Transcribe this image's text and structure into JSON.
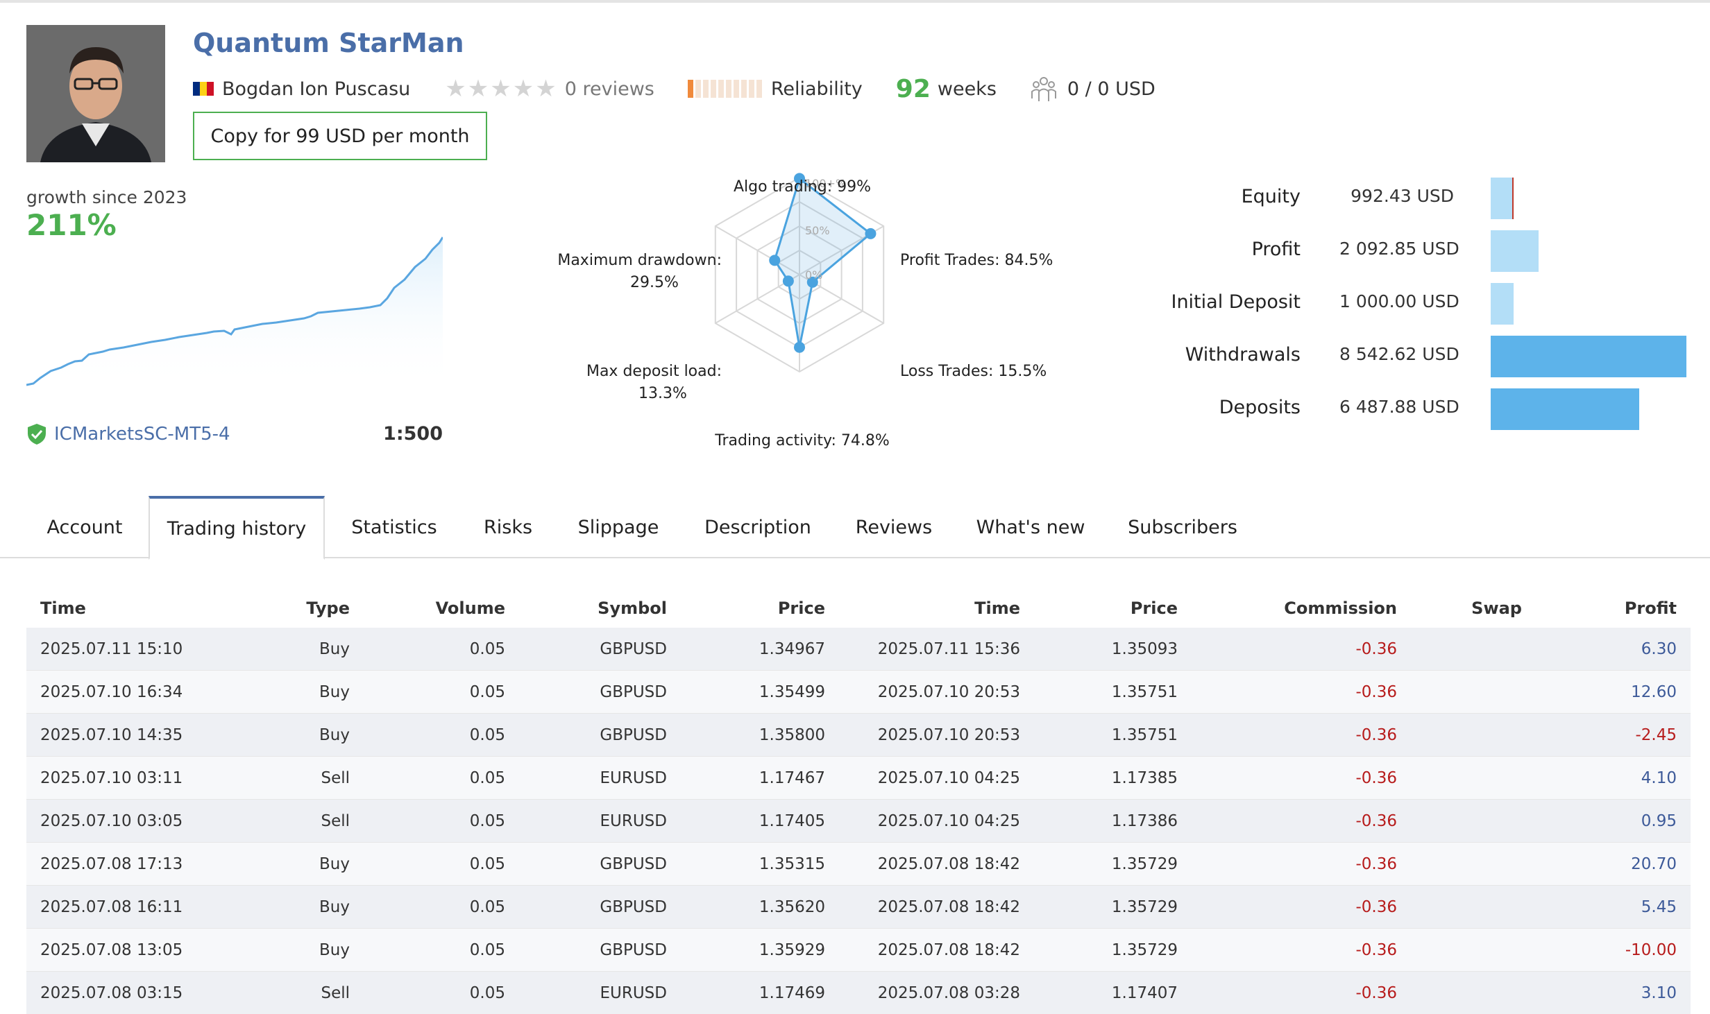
{
  "header": {
    "title": "Quantum StarMan",
    "author": "Bogdan Ion Puscasu",
    "reviews": "0 reviews",
    "reliability_label": "Reliability",
    "weeks_number": "92",
    "weeks_label": "weeks",
    "subscribers": "0 / 0 USD",
    "copy_button": "Copy for 99 USD per month",
    "flag_colors": [
      "#002b7f",
      "#fcd116",
      "#ce1126"
    ],
    "rating_stars": 0,
    "reliability_level": 1,
    "reliability_max": 10
  },
  "growth": {
    "label": "growth since 2023",
    "value": "211%",
    "broker": "ICMarketsSC-MT5-4",
    "leverage": "1:500",
    "line_color": "#5aa6e0"
  },
  "radar": {
    "labels": {
      "algo": "Algo trading: 99%",
      "profit_trades": "Profit Trades: 84.5%",
      "loss_trades": "Loss Trades: 15.5%",
      "trading_activity": "Trading activity: 74.8%",
      "max_deposit_load": "Max deposit load:",
      "max_deposit_load_value": "13.3%",
      "max_drawdown": "Maximum drawdown:",
      "max_drawdown_value": "29.5%"
    },
    "scale": {
      "top": "100+%",
      "mid": "50%",
      "zero": "0%"
    },
    "values": {
      "algo": 99,
      "profit_trades": 84.5,
      "loss_trades": 15.5,
      "trading_activity": 74.8,
      "max_deposit_load": 13.3,
      "max_drawdown": 29.5
    }
  },
  "balance": {
    "rows": [
      {
        "label": "Equity",
        "value": "992.43 USD",
        "amount": 992.43,
        "color": "#b3def7"
      },
      {
        "label": "Profit",
        "value": "2 092.85 USD",
        "amount": 2092.85,
        "color": "#b3def7"
      },
      {
        "label": "Initial Deposit",
        "value": "1 000.00 USD",
        "amount": 1000.0,
        "color": "#b3def7"
      },
      {
        "label": "Withdrawals",
        "value": "8 542.62 USD",
        "amount": 8542.62,
        "color": "#5db3ea"
      },
      {
        "label": "Deposits",
        "value": "6 487.88 USD",
        "amount": 6487.88,
        "color": "#5db3ea"
      }
    ]
  },
  "tabs": [
    {
      "label": "Account"
    },
    {
      "label": "Trading history"
    },
    {
      "label": "Statistics"
    },
    {
      "label": "Risks"
    },
    {
      "label": "Slippage"
    },
    {
      "label": "Description"
    },
    {
      "label": "Reviews"
    },
    {
      "label": "What's new"
    },
    {
      "label": "Subscribers"
    }
  ],
  "active_tab": 1,
  "table": {
    "headers": [
      "Time",
      "Type",
      "Volume",
      "Symbol",
      "Price",
      "Time",
      "Price",
      "Commission",
      "Swap",
      "Profit"
    ],
    "rows": [
      [
        "2025.07.11 15:10",
        "Buy",
        "0.05",
        "GBPUSD",
        "1.34967",
        "2025.07.11 15:36",
        "1.35093",
        "-0.36",
        "",
        "6.30"
      ],
      [
        "2025.07.10 16:34",
        "Buy",
        "0.05",
        "GBPUSD",
        "1.35499",
        "2025.07.10 20:53",
        "1.35751",
        "-0.36",
        "",
        "12.60"
      ],
      [
        "2025.07.10 14:35",
        "Buy",
        "0.05",
        "GBPUSD",
        "1.35800",
        "2025.07.10 20:53",
        "1.35751",
        "-0.36",
        "",
        "-2.45"
      ],
      [
        "2025.07.10 03:11",
        "Sell",
        "0.05",
        "EURUSD",
        "1.17467",
        "2025.07.10 04:25",
        "1.17385",
        "-0.36",
        "",
        "4.10"
      ],
      [
        "2025.07.10 03:05",
        "Sell",
        "0.05",
        "EURUSD",
        "1.17405",
        "2025.07.10 04:25",
        "1.17386",
        "-0.36",
        "",
        "0.95"
      ],
      [
        "2025.07.08 17:13",
        "Buy",
        "0.05",
        "GBPUSD",
        "1.35315",
        "2025.07.08 18:42",
        "1.35729",
        "-0.36",
        "",
        "20.70"
      ],
      [
        "2025.07.08 16:11",
        "Buy",
        "0.05",
        "GBPUSD",
        "1.35620",
        "2025.07.08 18:42",
        "1.35729",
        "-0.36",
        "",
        "5.45"
      ],
      [
        "2025.07.08 13:05",
        "Buy",
        "0.05",
        "GBPUSD",
        "1.35929",
        "2025.07.08 18:42",
        "1.35729",
        "-0.36",
        "",
        "-10.00"
      ],
      [
        "2025.07.08 03:15",
        "Sell",
        "0.05",
        "EURUSD",
        "1.17469",
        "2025.07.08 03:28",
        "1.17407",
        "-0.36",
        "",
        "3.10"
      ]
    ]
  }
}
